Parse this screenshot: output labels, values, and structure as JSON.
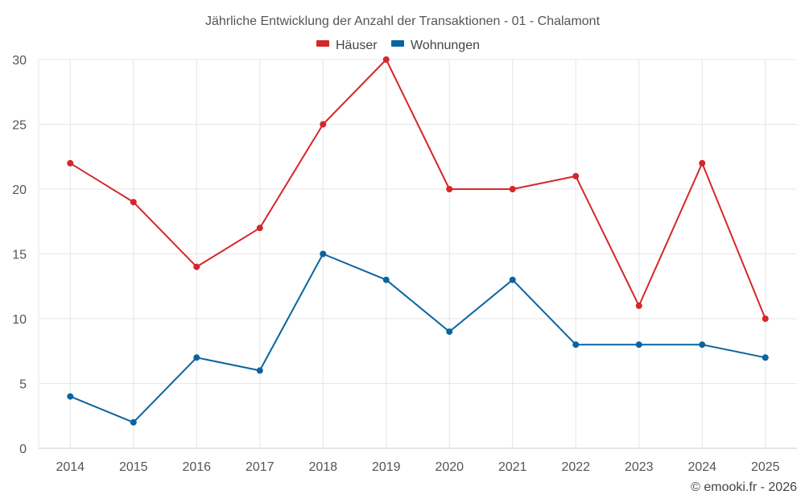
{
  "chart_data": {
    "type": "line",
    "title": "Jährliche Entwicklung der Anzahl der Transaktionen - 01 - Chalamont",
    "categories": [
      "2014",
      "2015",
      "2016",
      "2017",
      "2018",
      "2019",
      "2020",
      "2021",
      "2022",
      "2023",
      "2024",
      "2025"
    ],
    "series": [
      {
        "name": "Häuser",
        "color": "#d62728",
        "values": [
          22,
          19,
          14,
          17,
          25,
          30,
          20,
          20,
          21,
          11,
          22,
          10
        ]
      },
      {
        "name": "Wohnungen",
        "color": "#0a64a0",
        "values": [
          4,
          2,
          7,
          6,
          15,
          13,
          9,
          13,
          8,
          8,
          8,
          7
        ]
      }
    ],
    "ylim": [
      0,
      30
    ],
    "yticks": [
      0,
      5,
      10,
      15,
      20,
      25,
      30
    ],
    "xlabel": "",
    "ylabel": "",
    "grid": true,
    "legend": "top-center"
  },
  "credit": "© emooki.fr - 2026"
}
